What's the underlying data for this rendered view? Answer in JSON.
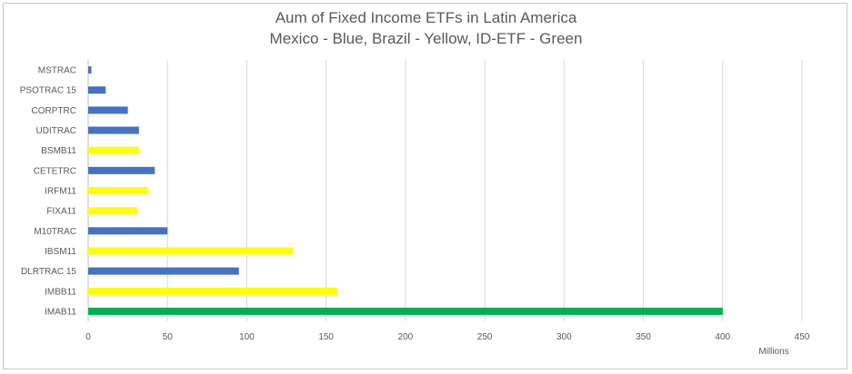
{
  "chart_data": {
    "type": "bar",
    "orientation": "horizontal",
    "title": "Aum of Fixed Income ETFs in Latin America",
    "subtitle": "Mexico - Blue, Brazil - Yellow, ID-ETF - Green",
    "xlabel": "",
    "ylabel": "",
    "x_unit_label": "Millions",
    "xlim": [
      0,
      450
    ],
    "x_ticks": [
      "0",
      "50",
      "100",
      "150",
      "200",
      "250",
      "300",
      "350",
      "400",
      "450"
    ],
    "grid": "vertical",
    "legend": "none",
    "colors": {
      "Mexico": "#4472c4",
      "Brazil": "#ffff00",
      "ID-ETF": "#00b050"
    },
    "categories": [
      "MSTRAC",
      "PSOTRAC 15",
      "CORPTRC",
      "UDITRAC",
      "BSMB11",
      "CETETRC",
      "IRFM11",
      "FIXA11",
      "M10TRAC",
      "IBSM11",
      "DLRTRAC 15",
      "IMBB11",
      "IMAB11"
    ],
    "values": [
      2,
      11,
      25,
      32,
      32,
      42,
      38,
      31,
      50,
      129,
      95,
      157,
      400
    ],
    "groups": [
      "Mexico",
      "Mexico",
      "Mexico",
      "Mexico",
      "Brazil",
      "Mexico",
      "Brazil",
      "Brazil",
      "Mexico",
      "Brazil",
      "Mexico",
      "Brazil",
      "ID-ETF"
    ]
  }
}
